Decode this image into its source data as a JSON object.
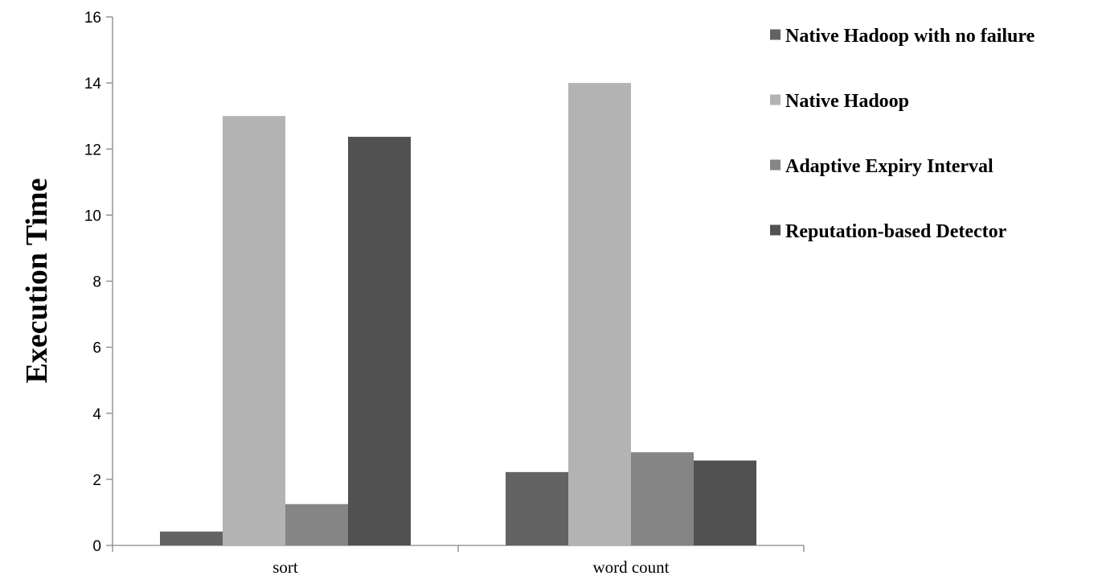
{
  "chart_data": {
    "type": "bar",
    "categories": [
      "sort",
      "word count"
    ],
    "series": [
      {
        "name": "Native Hadoop with no failure",
        "values": [
          0.42,
          2.22
        ],
        "color": "#636363"
      },
      {
        "name": "Native Hadoop",
        "values": [
          13.0,
          14.0
        ],
        "color": "#b3b3b3"
      },
      {
        "name": "Adaptive Expiry Interval",
        "values": [
          1.25,
          2.82
        ],
        "color": "#858585"
      },
      {
        "name": "Reputation-based Detector",
        "values": [
          12.37,
          2.57
        ],
        "color": "#515151"
      }
    ],
    "title": "",
    "xlabel": "",
    "ylabel": "Execution Time",
    "ylim": [
      0,
      16
    ],
    "yticks": [
      0,
      2,
      4,
      6,
      8,
      10,
      12,
      14,
      16
    ],
    "grid": false,
    "legend_position": "top-right"
  }
}
